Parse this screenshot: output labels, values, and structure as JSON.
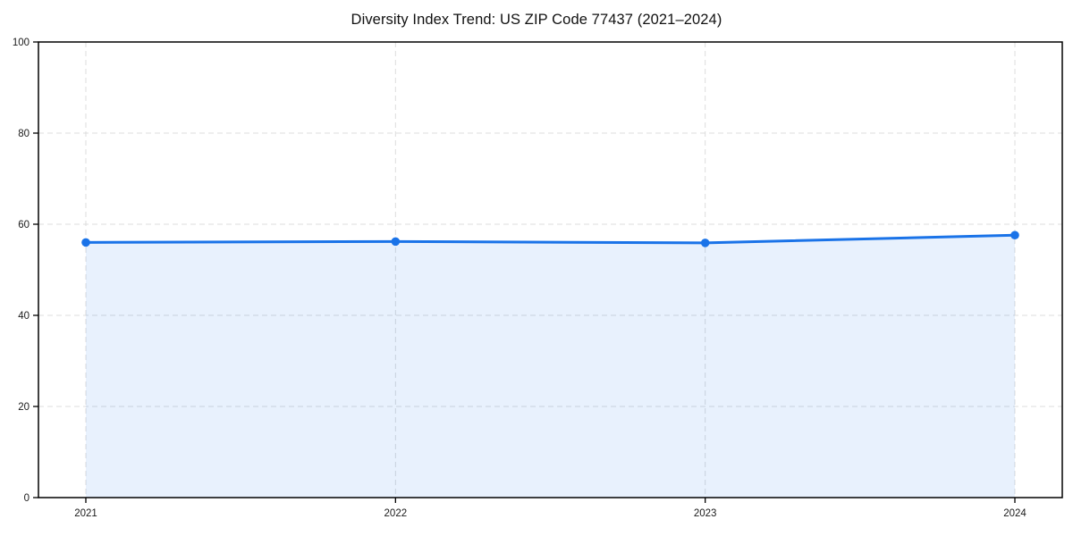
{
  "chart_data": {
    "type": "line",
    "title": "Diversity Index Trend: US ZIP Code 77437 (2021–2024)",
    "categories": [
      "2021",
      "2022",
      "2023",
      "2024"
    ],
    "series": [
      {
        "name": "Diversity Index",
        "values": [
          56.0,
          56.2,
          55.9,
          57.6
        ]
      }
    ],
    "xlabel": "",
    "ylabel": "",
    "ylim": [
      0,
      100
    ],
    "yticks": [
      0,
      20,
      40,
      60,
      80,
      100
    ],
    "grid": true,
    "grid_style": "dashed",
    "legend_position": "none",
    "colors": {
      "line": "#1a73e8",
      "marker": "#1a73e8",
      "area_fill": "rgba(26,115,232,0.10)",
      "grid": "#dcdcdc",
      "frame": "#000000",
      "background": "#ffffff",
      "title_text": "#111111",
      "tick_text": "#1a1a1a"
    }
  }
}
